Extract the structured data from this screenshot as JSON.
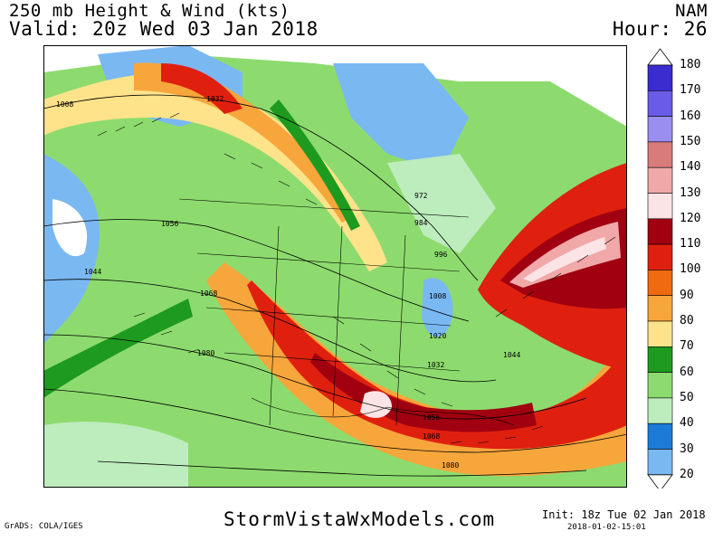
{
  "header": {
    "title": "250 mb Height & Wind (kts)",
    "valid": "Valid: 20z Wed 03 Jan 2018",
    "model": "NAM",
    "hour": "Hour: 26"
  },
  "colorbar": {
    "ticks": [
      "180",
      "170",
      "160",
      "150",
      "140",
      "130",
      "120",
      "110",
      "100",
      "90",
      "80",
      "70",
      "60",
      "50",
      "40",
      "30",
      "20"
    ],
    "colors": [
      "#3a2ccf",
      "#6a5ce6",
      "#9a8ef0",
      "#d97b7b",
      "#f0a8a8",
      "#fce4e6",
      "#a00010",
      "#e0200f",
      "#f06a12",
      "#f7a63c",
      "#ffe38a",
      "#1e9a1e",
      "#8ddb6e",
      "#bdecbd",
      "#1d7bd8",
      "#7ab8f2"
    ]
  },
  "contours": [
    "1008",
    "1032",
    "1056",
    "1044",
    "1068",
    "1080",
    "972",
    "984",
    "996",
    "1008",
    "1020",
    "1032",
    "1044",
    "1056",
    "1068",
    "1080"
  ],
  "footer": {
    "grads": "GrADS: COLA/IGES",
    "site": "StormVistaWxModels.com",
    "init": "Init: 18z Tue 02 Jan 2018",
    "stamp": "2018-01-02-15:01"
  }
}
